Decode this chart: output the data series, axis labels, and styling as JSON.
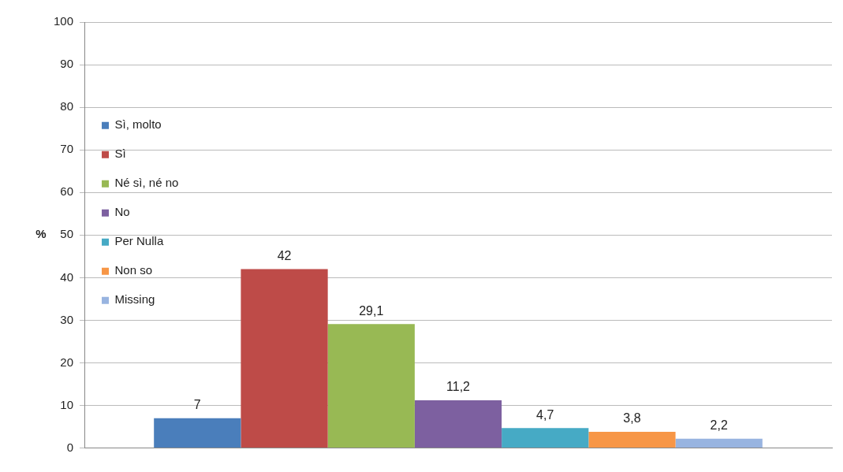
{
  "chart_data": {
    "type": "bar",
    "ylabel": "%",
    "categories": [
      null
    ],
    "series": [
      {
        "name": "Sì, molto",
        "color": "#4a7ebb",
        "values": [
          7
        ],
        "value_labels": [
          "7"
        ]
      },
      {
        "name": "Sì",
        "color": "#be4b48",
        "values": [
          42
        ],
        "value_labels": [
          "42"
        ]
      },
      {
        "name": "Né sì, né no",
        "color": "#98b954",
        "values": [
          29.1
        ],
        "value_labels": [
          "29,1"
        ]
      },
      {
        "name": "No",
        "color": "#7d60a0",
        "values": [
          11.2
        ],
        "value_labels": [
          "11,2"
        ]
      },
      {
        "name": "Per Nulla",
        "color": "#46aac5",
        "values": [
          4.7
        ],
        "value_labels": [
          "4,7"
        ]
      },
      {
        "name": "Non so",
        "color": "#f79646",
        "values": [
          3.8
        ],
        "value_labels": [
          "3,8"
        ]
      },
      {
        "name": "Missing",
        "color": "#98b4e0",
        "values": [
          2.2
        ],
        "value_labels": [
          "2,2"
        ]
      }
    ],
    "ylim": [
      0,
      100
    ],
    "yticks": [
      0,
      10,
      20,
      30,
      40,
      50,
      60,
      70,
      80,
      90,
      100
    ],
    "grid": "y",
    "legend": "top"
  }
}
